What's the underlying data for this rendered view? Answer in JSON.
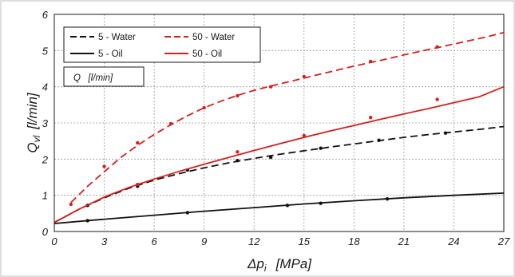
{
  "chart_data": {
    "type": "line",
    "xlabel": "Δp",
    "xlabel_sub": "i",
    "xlabel_unit": "[MPa]",
    "ylabel": "Q",
    "ylabel_sub": "vl",
    "ylabel_unit": "[l/min]",
    "xlim": [
      0,
      27
    ],
    "ylim": [
      0,
      6
    ],
    "xticks": [
      "0",
      "3",
      "6",
      "9",
      "12",
      "15",
      "18",
      "21",
      "24",
      "27"
    ],
    "yticks": [
      "0",
      "1",
      "2",
      "3",
      "4",
      "5",
      "6"
    ],
    "grid": true,
    "legend_position": "top-left",
    "annotation": "Q   [l/min]",
    "series": [
      {
        "name": "5 - Water",
        "color": "#111111",
        "line_style": "dashed",
        "x": [
          0,
          1.5,
          3,
          4.5,
          6,
          7.5,
          9,
          10.5,
          12,
          13.5,
          15,
          16.5,
          18,
          19.5,
          21,
          22.5,
          24,
          25.5,
          27
        ],
        "y": [
          0.25,
          0.62,
          0.93,
          1.2,
          1.42,
          1.6,
          1.76,
          1.9,
          2.02,
          2.13,
          2.23,
          2.33,
          2.42,
          2.51,
          2.6,
          2.68,
          2.75,
          2.82,
          2.9
        ],
        "markers": {
          "x": [
            2,
            5,
            8,
            11,
            13,
            16,
            19.5,
            23.5
          ],
          "y": [
            0.72,
            1.25,
            1.7,
            1.96,
            2.05,
            2.3,
            2.52,
            2.72
          ]
        }
      },
      {
        "name": "50 - Water",
        "color": "#d42020",
        "line_style": "dashed",
        "x": [
          1,
          2,
          3,
          4,
          5,
          6,
          7,
          8,
          9,
          10,
          11,
          12,
          13,
          14,
          15,
          16,
          17,
          18,
          19,
          20,
          21,
          22,
          23,
          24,
          25,
          26,
          27
        ],
        "y": [
          0.8,
          1.25,
          1.65,
          2.05,
          2.38,
          2.68,
          2.95,
          3.2,
          3.42,
          3.6,
          3.76,
          3.9,
          4.02,
          4.13,
          4.24,
          4.35,
          4.46,
          4.57,
          4.67,
          4.77,
          4.88,
          4.98,
          5.08,
          5.18,
          5.28,
          5.38,
          5.5
        ],
        "markers": {
          "x": [
            1,
            3,
            5,
            7,
            9,
            11,
            13,
            15,
            19,
            23
          ],
          "y": [
            0.75,
            1.8,
            2.45,
            2.98,
            3.42,
            3.75,
            4.0,
            4.28,
            4.7,
            5.1
          ]
        }
      },
      {
        "name": "5 - Oil",
        "color": "#111111",
        "line_style": "solid",
        "x": [
          0,
          3,
          6,
          9,
          12,
          15,
          18,
          21,
          24,
          27
        ],
        "y": [
          0.22,
          0.34,
          0.45,
          0.56,
          0.66,
          0.76,
          0.85,
          0.93,
          1.0,
          1.06
        ],
        "markers": {
          "x": [
            2,
            8,
            14,
            16,
            20
          ],
          "y": [
            0.3,
            0.52,
            0.72,
            0.78,
            0.9
          ]
        }
      },
      {
        "name": "50 - Oil",
        "color": "#d42020",
        "line_style": "solid",
        "x": [
          0,
          1.5,
          3,
          4.5,
          6,
          7.5,
          9,
          10.5,
          12,
          13.5,
          15,
          16.5,
          18,
          19.5,
          21,
          22.5,
          24,
          25.5,
          27
        ],
        "y": [
          0.25,
          0.62,
          0.95,
          1.22,
          1.45,
          1.66,
          1.86,
          2.05,
          2.24,
          2.42,
          2.6,
          2.77,
          2.93,
          3.09,
          3.25,
          3.4,
          3.56,
          3.72,
          4.0
        ],
        "markers": {
          "x": [
            5,
            11,
            15,
            19,
            23
          ],
          "y": [
            1.3,
            2.2,
            2.65,
            3.15,
            3.65
          ]
        }
      }
    ]
  }
}
